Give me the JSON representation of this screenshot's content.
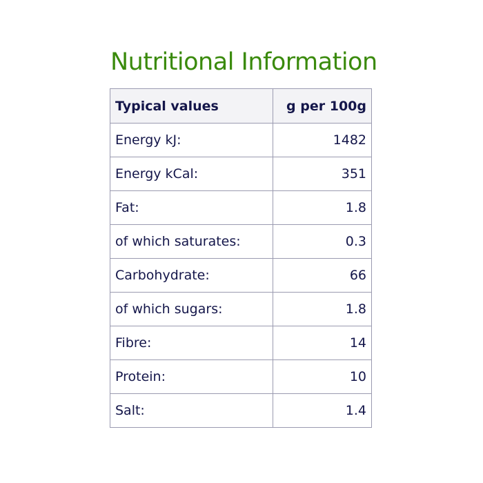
{
  "title": "Nutritional Information",
  "header": {
    "label": "Typical values",
    "value": "g per 100g"
  },
  "rows": [
    {
      "label": "Energy kJ:",
      "value": "1482"
    },
    {
      "label": "Energy kCal:",
      "value": "351"
    },
    {
      "label": "Fat:",
      "value": "1.8"
    },
    {
      "label": "of which saturates:",
      "value": "0.3"
    },
    {
      "label": "Carbohydrate:",
      "value": "66"
    },
    {
      "label": "of which sugars:",
      "value": "1.8"
    },
    {
      "label": "Fibre:",
      "value": "14"
    },
    {
      "label": "Protein:",
      "value": "10"
    },
    {
      "label": "Salt:",
      "value": "1.4"
    }
  ]
}
